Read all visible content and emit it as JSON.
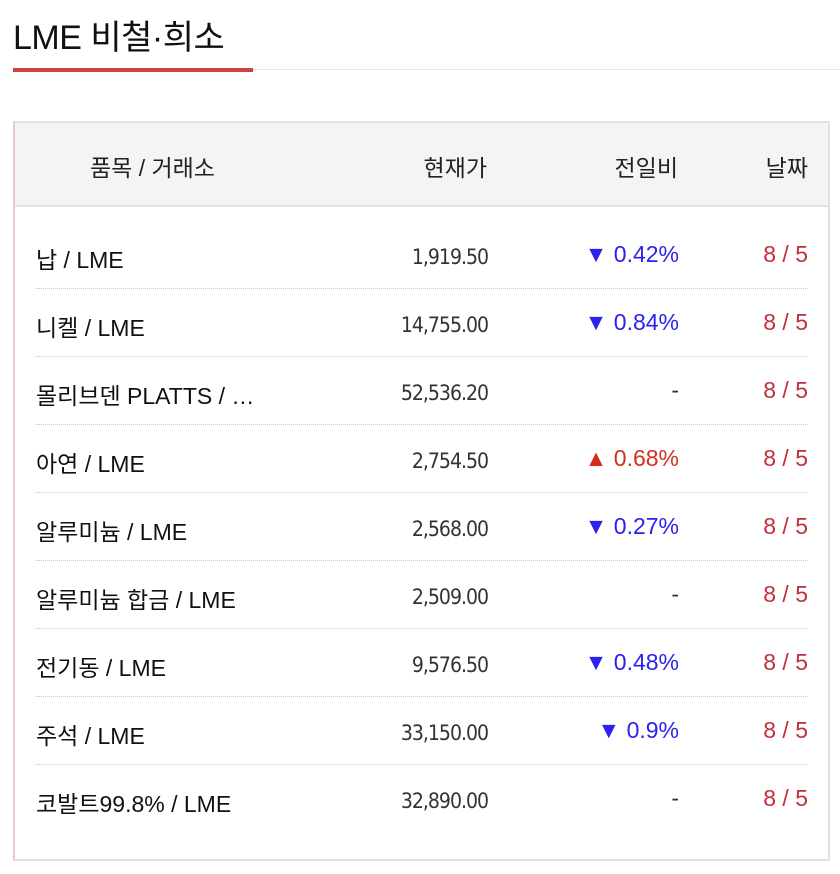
{
  "title": "LME 비철·희소",
  "colors": {
    "accent": "#c9453d",
    "down": "#2b22f0",
    "up": "#d22f1e",
    "date": "#c2303c"
  },
  "headers": {
    "name": "품목 / 거래소",
    "price": "현재가",
    "change": "전일비",
    "date": "날짜"
  },
  "rows": [
    {
      "name": "납 / LME",
      "price": "1,919.50",
      "change": "▼ 0.42%",
      "dir": "down",
      "date": "8 / 5"
    },
    {
      "name": "니켈 / LME",
      "price": "14,755.00",
      "change": "▼ 0.84%",
      "dir": "down",
      "date": "8 / 5"
    },
    {
      "name": "몰리브덴 PLATTS / …",
      "price": "52,536.20",
      "change": "-",
      "dir": "flat",
      "date": "8 / 5"
    },
    {
      "name": "아연 / LME",
      "price": "2,754.50",
      "change": "▲ 0.68%",
      "dir": "up",
      "date": "8 / 5"
    },
    {
      "name": "알루미늄 / LME",
      "price": "2,568.00",
      "change": "▼ 0.27%",
      "dir": "down",
      "date": "8 / 5"
    },
    {
      "name": "알루미늄 합금 / LME",
      "price": "2,509.00",
      "change": "-",
      "dir": "flat",
      "date": "8 / 5"
    },
    {
      "name": "전기동 / LME",
      "price": "9,576.50",
      "change": "▼ 0.48%",
      "dir": "down",
      "date": "8 / 5"
    },
    {
      "name": "주석 / LME",
      "price": "33,150.00",
      "change": "▼ 0.9%",
      "dir": "down",
      "date": "8 / 5"
    },
    {
      "name": "코발트99.8% / LME",
      "price": "32,890.00",
      "change": "-",
      "dir": "flat",
      "date": "8 / 5"
    }
  ]
}
